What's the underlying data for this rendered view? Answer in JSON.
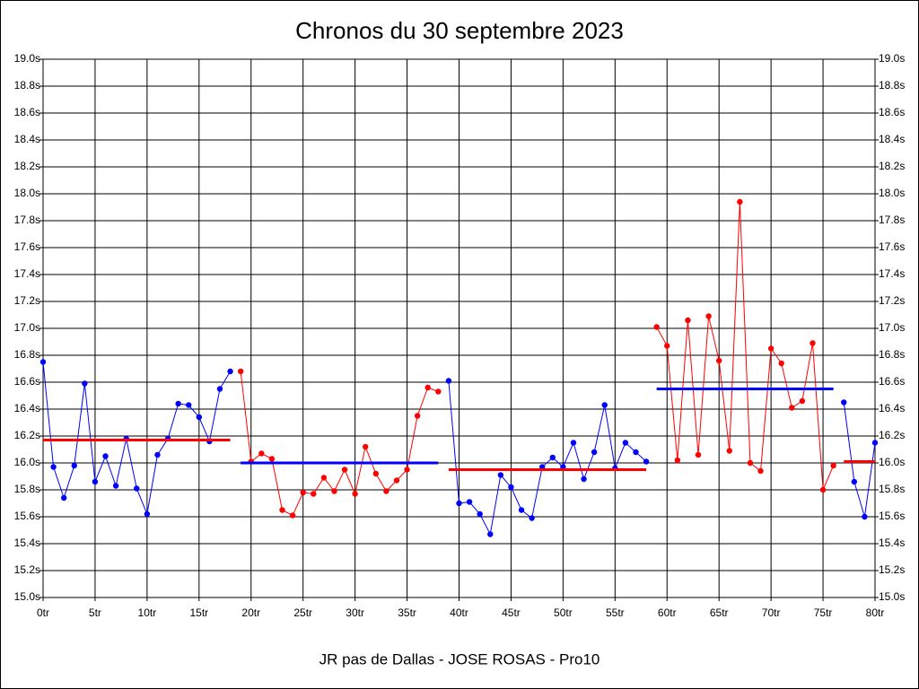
{
  "chart_data": {
    "type": "line",
    "title": "Chronos du 30 septembre 2023",
    "xlabel": "JR pas de Dallas - JOSE ROSAS - Pro10",
    "grid": true,
    "xlim": [
      0,
      80
    ],
    "ylim": [
      15.0,
      19.0
    ],
    "xticks": [
      {
        "value": 0,
        "label": "0tr"
      },
      {
        "value": 5,
        "label": "5tr"
      },
      {
        "value": 10,
        "label": "10tr"
      },
      {
        "value": 15,
        "label": "15tr"
      },
      {
        "value": 20,
        "label": "20tr"
      },
      {
        "value": 25,
        "label": "25tr"
      },
      {
        "value": 30,
        "label": "30tr"
      },
      {
        "value": 35,
        "label": "35tr"
      },
      {
        "value": 40,
        "label": "40tr"
      },
      {
        "value": 45,
        "label": "45tr"
      },
      {
        "value": 50,
        "label": "50tr"
      },
      {
        "value": 55,
        "label": "55tr"
      },
      {
        "value": 60,
        "label": "60tr"
      },
      {
        "value": 65,
        "label": "65tr"
      },
      {
        "value": 70,
        "label": "70tr"
      },
      {
        "value": 75,
        "label": "75tr"
      },
      {
        "value": 80,
        "label": "80tr"
      }
    ],
    "yticks": [
      {
        "value": 15.0,
        "label": "15.0s"
      },
      {
        "value": 15.2,
        "label": "15.2s"
      },
      {
        "value": 15.4,
        "label": "15.4s"
      },
      {
        "value": 15.6,
        "label": "15.6s"
      },
      {
        "value": 15.8,
        "label": "15.8s"
      },
      {
        "value": 16.0,
        "label": "16.0s"
      },
      {
        "value": 16.2,
        "label": "16.2s"
      },
      {
        "value": 16.4,
        "label": "16.4s"
      },
      {
        "value": 16.6,
        "label": "16.6s"
      },
      {
        "value": 16.8,
        "label": "16.8s"
      },
      {
        "value": 17.0,
        "label": "17.0s"
      },
      {
        "value": 17.2,
        "label": "17.2s"
      },
      {
        "value": 17.4,
        "label": "17.4s"
      },
      {
        "value": 17.6,
        "label": "17.6s"
      },
      {
        "value": 17.8,
        "label": "17.8s"
      },
      {
        "value": 18.0,
        "label": "18.0s"
      },
      {
        "value": 18.2,
        "label": "18.2s"
      },
      {
        "value": 18.4,
        "label": "18.4s"
      },
      {
        "value": 18.6,
        "label": "18.6s"
      },
      {
        "value": 18.8,
        "label": "18.8s"
      },
      {
        "value": 19.0,
        "label": "19.0s"
      }
    ],
    "series": [
      {
        "color": "#0000ff",
        "x": [
          0,
          1,
          2,
          3,
          4,
          5,
          6,
          7,
          8,
          9,
          10,
          11,
          12,
          13,
          14,
          15,
          16,
          17,
          18
        ],
        "values": [
          16.75,
          15.97,
          15.74,
          15.98,
          16.59,
          15.86,
          16.05,
          15.83,
          16.18,
          15.81,
          15.62,
          16.06,
          16.18,
          16.44,
          16.43,
          16.34,
          16.16,
          16.55,
          16.68
        ]
      },
      {
        "color": "#ff0000",
        "x": [
          19,
          20,
          21,
          22,
          23,
          24,
          25,
          26,
          27,
          28,
          29,
          30,
          31,
          32,
          33,
          34,
          35,
          36,
          37,
          38
        ],
        "values": [
          16.68,
          16.01,
          16.07,
          16.03,
          15.65,
          15.61,
          15.78,
          15.77,
          15.89,
          15.79,
          15.95,
          15.77,
          16.12,
          15.92,
          15.79,
          15.87,
          15.95,
          16.35,
          16.56,
          16.53
        ]
      },
      {
        "color": "#0000ff",
        "x": [
          39,
          40,
          41,
          42,
          43,
          44,
          45,
          46,
          47,
          48,
          49,
          50,
          51,
          52,
          53,
          54,
          55,
          56,
          57,
          58
        ],
        "values": [
          16.61,
          15.7,
          15.71,
          15.62,
          15.47,
          15.91,
          15.82,
          15.65,
          15.59,
          15.97,
          16.04,
          15.97,
          16.15,
          15.88,
          16.08,
          16.43,
          15.96,
          16.15,
          16.08,
          16.01
        ]
      },
      {
        "color": "#ff0000",
        "x": [
          59,
          60,
          61,
          62,
          63,
          64,
          65,
          66,
          67,
          68,
          69,
          70,
          71,
          72,
          73,
          74,
          75,
          76
        ],
        "values": [
          17.01,
          16.87,
          16.02,
          17.06,
          16.06,
          17.09,
          16.76,
          16.09,
          17.94,
          16.0,
          15.94,
          16.85,
          16.74,
          16.41,
          16.46,
          16.89,
          15.8,
          15.98
        ]
      },
      {
        "color": "#0000ff",
        "x": [
          77,
          78,
          79,
          80
        ],
        "values": [
          16.45,
          15.86,
          15.6,
          16.15
        ]
      }
    ],
    "averages": [
      {
        "color": "#ff0000",
        "x": [
          0,
          18
        ],
        "value": 16.17
      },
      {
        "color": "#0000ff",
        "x": [
          19,
          38
        ],
        "value": 16.0
      },
      {
        "color": "#ff0000",
        "x": [
          39,
          58
        ],
        "value": 15.95
      },
      {
        "color": "#0000ff",
        "x": [
          59,
          76
        ],
        "value": 16.55
      },
      {
        "color": "#ff0000",
        "x": [
          77,
          80
        ],
        "value": 16.01
      }
    ]
  }
}
